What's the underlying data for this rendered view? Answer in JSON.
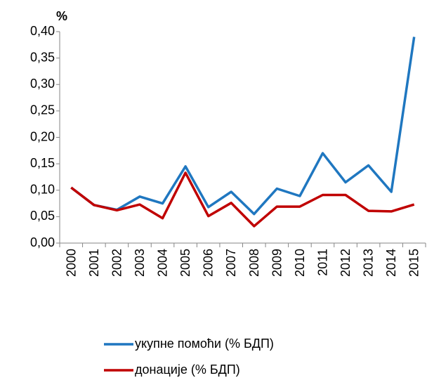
{
  "chart_data": {
    "type": "line",
    "unit_label": "%",
    "categories": [
      "2000",
      "2001",
      "2002",
      "2003",
      "2004",
      "2005",
      "2006",
      "2007",
      "2008",
      "2009",
      "2010",
      "2011",
      "2012",
      "2013",
      "2014",
      "2015"
    ],
    "series": [
      {
        "name": "укупне помоћи (% БДП)",
        "color": "#1f77c0",
        "values": [
          0.105,
          0.072,
          0.063,
          0.088,
          0.075,
          0.145,
          0.068,
          0.097,
          0.055,
          0.103,
          0.089,
          0.17,
          0.115,
          0.147,
          0.097,
          0.39
        ]
      },
      {
        "name": "донације (% БДП)",
        "color": "#c00000",
        "values": [
          0.105,
          0.072,
          0.062,
          0.073,
          0.047,
          0.133,
          0.051,
          0.076,
          0.032,
          0.069,
          0.069,
          0.091,
          0.091,
          0.061,
          0.06,
          0.073
        ]
      }
    ],
    "ylim": [
      0,
      0.4
    ],
    "yticks": [
      {
        "value": 0,
        "label": "0,00"
      },
      {
        "value": 0.05,
        "label": "0,05"
      },
      {
        "value": 0.1,
        "label": "0,10"
      },
      {
        "value": 0.15,
        "label": "0,15"
      },
      {
        "value": 0.2,
        "label": "0,20"
      },
      {
        "value": 0.25,
        "label": "0,25"
      },
      {
        "value": 0.3,
        "label": "0,30"
      },
      {
        "value": 0.35,
        "label": "0,35"
      },
      {
        "value": 0.4,
        "label": "0,40"
      }
    ],
    "grid": false,
    "legend": "bottom"
  }
}
